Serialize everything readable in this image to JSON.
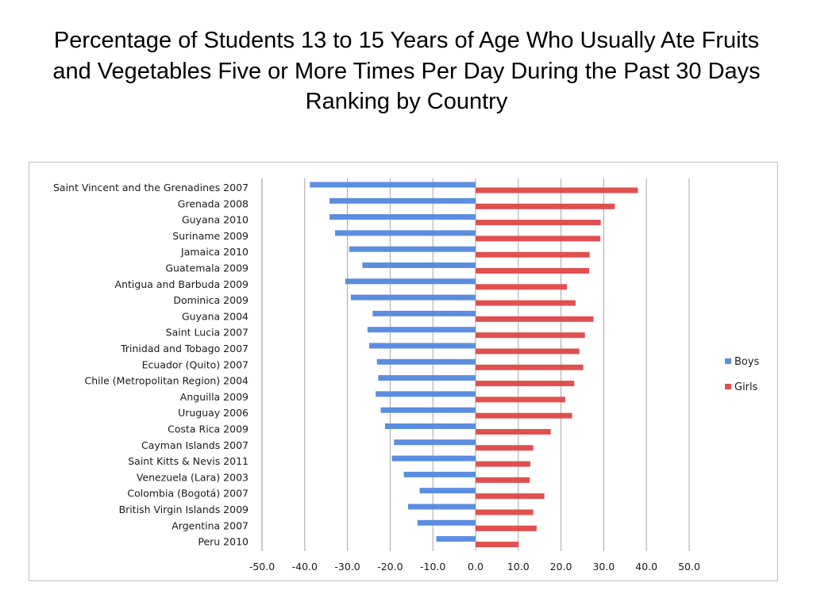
{
  "title": "Percentage of Students 13 to 15 Years of Age Who Usually Ate Fruits and Vegetables Five or More Times Per Day During the Past 30 Days Ranking by Country",
  "chart_data": {
    "type": "bar",
    "orientation": "horizontal",
    "title": "",
    "xlabel": "",
    "ylabel": "",
    "xlim": [
      -50,
      50
    ],
    "x_ticks": [
      "-50.0",
      "-40.0",
      "-30.0",
      "-20.0",
      "-10.0",
      "0.0",
      "10.0",
      "20.0",
      "30.0",
      "40.0",
      "50.0"
    ],
    "grid": "vertical",
    "legend_position": "right",
    "categories": [
      "Saint Vincent and the Grenadines 2007",
      "Grenada 2008",
      "Guyana 2010",
      "Suriname 2009",
      "Jamaica 2010",
      "Guatemala 2009",
      "Antigua and Barbuda 2009",
      "Dominica 2009",
      "Guyana 2004",
      "Saint Lucia 2007",
      "Trinidad and Tobago 2007",
      "Ecuador (Quito) 2007",
      "Chile (Metropolitan Region) 2004",
      "Anguilla 2009",
      "Uruguay 2006",
      "Costa Rica 2009",
      "Cayman Islands 2007",
      "Saint Kitts & Nevis 2011",
      "Venezuela (Lara) 2003",
      "Colombia (Bogotá) 2007",
      "British Virgin Islands 2009",
      "Argentina 2007",
      "Peru 2010"
    ],
    "series": [
      {
        "name": "Boys",
        "color": "#5b8ee0",
        "values": [
          -38.8,
          -34.2,
          -34.2,
          -32.9,
          -29.6,
          -26.5,
          -30.5,
          -29.2,
          -24.1,
          -25.3,
          -24.9,
          -23.1,
          -22.8,
          -23.4,
          -22.2,
          -21.2,
          -19.1,
          -19.6,
          -16.8,
          -13.1,
          -15.8,
          -13.6,
          -9.2
        ]
      },
      {
        "name": "Girls",
        "color": "#e05050",
        "values": [
          38.0,
          32.6,
          29.3,
          29.2,
          26.7,
          26.6,
          21.4,
          23.4,
          27.6,
          25.6,
          24.3,
          25.2,
          23.1,
          21.0,
          22.6,
          17.6,
          13.5,
          12.8,
          12.7,
          16.1,
          13.5,
          14.3,
          10.1
        ]
      }
    ]
  }
}
